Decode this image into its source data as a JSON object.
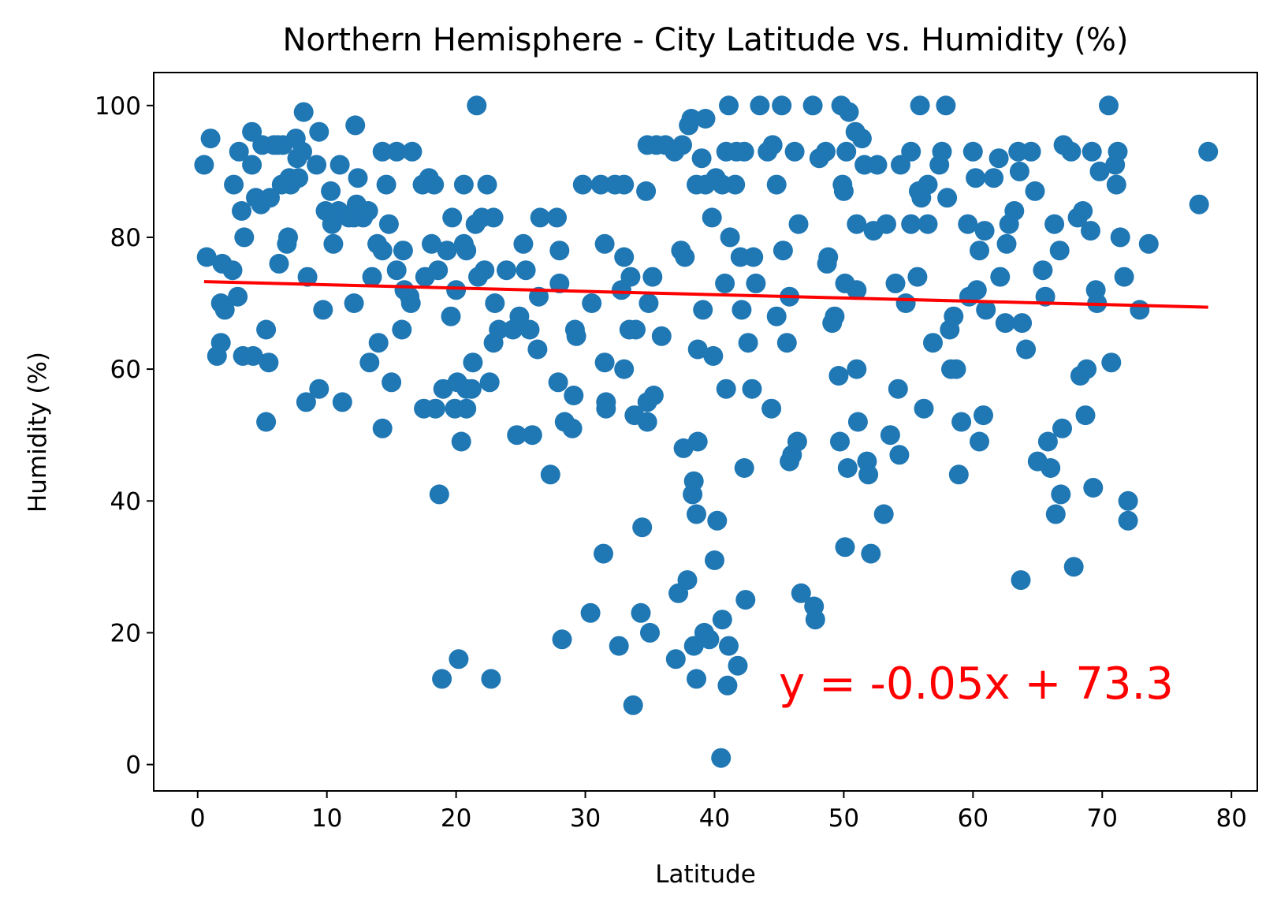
{
  "chart_data": {
    "type": "scatter",
    "title": "Northern Hemisphere - City Latitude vs. Humidity (%)",
    "xlabel": "Latitude",
    "ylabel": "Humidity (%)",
    "xlim": [
      -3.4,
      82
    ],
    "ylim": [
      -4,
      105
    ],
    "xticks": [
      0,
      10,
      20,
      30,
      40,
      50,
      60,
      70,
      80
    ],
    "yticks": [
      0,
      20,
      40,
      60,
      80,
      100
    ],
    "grid": false,
    "legend": "none",
    "colors": {
      "points": "#1f77b4",
      "regression": "#ff0000"
    },
    "regression": {
      "slope": -0.05,
      "intercept": 73.3,
      "x_start": 0.5,
      "x_end": 78.2
    },
    "annotation": "y = -0.05x + 73.3",
    "points": [
      [
        0.5,
        91
      ],
      [
        0.7,
        77
      ],
      [
        1,
        95
      ],
      [
        1.5,
        62
      ],
      [
        1.8,
        64
      ],
      [
        1.9,
        76
      ],
      [
        1.8,
        70
      ],
      [
        2.1,
        69
      ],
      [
        2.7,
        75
      ],
      [
        2.8,
        88
      ],
      [
        3.1,
        71
      ],
      [
        3.2,
        93
      ],
      [
        3.4,
        84
      ],
      [
        3.5,
        62
      ],
      [
        3.6,
        80
      ],
      [
        4.2,
        91
      ],
      [
        4.3,
        62
      ],
      [
        4.2,
        96
      ],
      [
        4.5,
        86
      ],
      [
        4.9,
        85
      ],
      [
        5,
        94
      ],
      [
        5.3,
        66
      ],
      [
        5.3,
        52
      ],
      [
        5.5,
        61
      ],
      [
        5.6,
        86
      ],
      [
        5.9,
        94
      ],
      [
        6.2,
        94
      ],
      [
        6.3,
        76
      ],
      [
        6.5,
        88
      ],
      [
        6.6,
        94
      ],
      [
        6.9,
        79
      ],
      [
        7,
        80
      ],
      [
        7.1,
        89
      ],
      [
        7.2,
        88
      ],
      [
        7.6,
        95
      ],
      [
        7.7,
        92
      ],
      [
        7.8,
        89
      ],
      [
        8.1,
        93
      ],
      [
        8.2,
        99
      ],
      [
        8.4,
        55
      ],
      [
        8.5,
        74
      ],
      [
        9.2,
        91
      ],
      [
        9.4,
        57
      ],
      [
        9.4,
        96
      ],
      [
        9.7,
        69
      ],
      [
        9.9,
        84
      ],
      [
        10.3,
        87
      ],
      [
        10.4,
        82
      ],
      [
        10.5,
        79
      ],
      [
        10.9,
        84
      ],
      [
        11,
        91
      ],
      [
        11.2,
        55
      ],
      [
        11.7,
        83
      ],
      [
        12.1,
        83
      ],
      [
        12.1,
        70
      ],
      [
        12.2,
        97
      ],
      [
        12.3,
        85
      ],
      [
        12.4,
        89
      ],
      [
        12.8,
        83
      ],
      [
        13.2,
        84
      ],
      [
        13.3,
        61
      ],
      [
        13.5,
        74
      ],
      [
        13.9,
        79
      ],
      [
        14,
        64
      ],
      [
        14.3,
        78
      ],
      [
        14.3,
        93
      ],
      [
        14.3,
        51
      ],
      [
        14.6,
        88
      ],
      [
        14.8,
        82
      ],
      [
        15,
        58
      ],
      [
        15.4,
        93
      ],
      [
        15.4,
        75
      ],
      [
        15.8,
        66
      ],
      [
        15.9,
        78
      ],
      [
        16,
        72
      ],
      [
        16.4,
        71
      ],
      [
        16.5,
        70
      ],
      [
        16.6,
        93
      ],
      [
        17.4,
        88
      ],
      [
        17.5,
        54
      ],
      [
        17.6,
        74
      ],
      [
        17.9,
        89
      ],
      [
        18.1,
        79
      ],
      [
        18.3,
        88
      ],
      [
        18.4,
        54
      ],
      [
        18.6,
        75
      ],
      [
        18.7,
        41
      ],
      [
        18.9,
        13
      ],
      [
        19,
        57
      ],
      [
        19.3,
        78
      ],
      [
        19.6,
        68
      ],
      [
        19.7,
        83
      ],
      [
        19.9,
        54
      ],
      [
        20,
        72
      ],
      [
        20.1,
        58
      ],
      [
        20.2,
        16
      ],
      [
        20.4,
        49
      ],
      [
        20.6,
        88
      ],
      [
        20.6,
        79
      ],
      [
        20.8,
        57
      ],
      [
        20.8,
        54
      ],
      [
        20.8,
        78
      ],
      [
        21.2,
        57
      ],
      [
        21.3,
        61
      ],
      [
        21.5,
        82
      ],
      [
        21.6,
        100
      ],
      [
        21.7,
        74
      ],
      [
        22,
        83
      ],
      [
        22.2,
        75
      ],
      [
        22.4,
        88
      ],
      [
        22.6,
        58
      ],
      [
        22.7,
        13
      ],
      [
        22.9,
        64
      ],
      [
        22.9,
        83
      ],
      [
        23,
        70
      ],
      [
        23.3,
        66
      ],
      [
        23.9,
        75
      ],
      [
        24.4,
        66
      ],
      [
        24.7,
        50
      ],
      [
        24.9,
        68
      ],
      [
        25.2,
        79
      ],
      [
        25.4,
        75
      ],
      [
        25.7,
        66
      ],
      [
        25.9,
        50
      ],
      [
        26.3,
        63
      ],
      [
        26.4,
        71
      ],
      [
        26.5,
        83
      ],
      [
        27.3,
        44
      ],
      [
        27.8,
        83
      ],
      [
        27.9,
        58
      ],
      [
        28,
        78
      ],
      [
        28,
        73
      ],
      [
        28.2,
        19
      ],
      [
        28.4,
        52
      ],
      [
        29,
        51
      ],
      [
        29.1,
        56
      ],
      [
        29.2,
        66
      ],
      [
        29.3,
        65
      ],
      [
        29.8,
        88
      ],
      [
        30.4,
        23
      ],
      [
        30.5,
        70
      ],
      [
        31.2,
        88
      ],
      [
        31.4,
        32
      ],
      [
        31.5,
        79
      ],
      [
        31.5,
        61
      ],
      [
        31.6,
        55
      ],
      [
        31.6,
        54
      ],
      [
        32.3,
        88
      ],
      [
        32.6,
        18
      ],
      [
        32.8,
        72
      ],
      [
        33,
        88
      ],
      [
        33,
        77
      ],
      [
        33,
        60
      ],
      [
        33.4,
        66
      ],
      [
        33.5,
        74
      ],
      [
        33.7,
        9
      ],
      [
        33.8,
        53
      ],
      [
        33.9,
        66
      ],
      [
        34.3,
        23
      ],
      [
        34.4,
        36
      ],
      [
        34.7,
        87
      ],
      [
        34.8,
        94
      ],
      [
        34.8,
        52
      ],
      [
        34.8,
        55
      ],
      [
        34.9,
        70
      ],
      [
        35,
        20
      ],
      [
        35.2,
        74
      ],
      [
        35.3,
        56
      ],
      [
        35.5,
        94
      ],
      [
        35.9,
        65
      ],
      [
        36.2,
        94
      ],
      [
        36.9,
        93
      ],
      [
        37,
        16
      ],
      [
        37.2,
        26
      ],
      [
        37.4,
        78
      ],
      [
        37.5,
        94
      ],
      [
        37.6,
        48
      ],
      [
        37.7,
        77
      ],
      [
        37.9,
        28
      ],
      [
        38,
        97
      ],
      [
        38.2,
        98
      ],
      [
        38.3,
        41
      ],
      [
        38.4,
        43
      ],
      [
        38.4,
        18
      ],
      [
        38.6,
        88
      ],
      [
        38.6,
        13
      ],
      [
        38.6,
        38
      ],
      [
        38.7,
        63
      ],
      [
        38.7,
        49
      ],
      [
        39,
        92
      ],
      [
        39.1,
        69
      ],
      [
        39.2,
        20
      ],
      [
        39.3,
        98
      ],
      [
        39.3,
        88
      ],
      [
        39.6,
        19
      ],
      [
        39.8,
        83
      ],
      [
        39.9,
        62
      ],
      [
        40,
        31
      ],
      [
        40.1,
        89
      ],
      [
        40.2,
        37
      ],
      [
        40.5,
        1
      ],
      [
        40.6,
        22
      ],
      [
        40.6,
        88
      ],
      [
        40.8,
        73
      ],
      [
        40.9,
        57
      ],
      [
        40.9,
        93
      ],
      [
        41,
        12
      ],
      [
        41.1,
        100
      ],
      [
        41.1,
        18
      ],
      [
        41.2,
        80
      ],
      [
        41.6,
        88
      ],
      [
        41.7,
        93
      ],
      [
        41.8,
        15
      ],
      [
        42,
        77
      ],
      [
        42.1,
        69
      ],
      [
        42.3,
        45
      ],
      [
        42.3,
        93
      ],
      [
        42.4,
        25
      ],
      [
        42.6,
        64
      ],
      [
        42.9,
        57
      ],
      [
        43,
        77
      ],
      [
        43.2,
        73
      ],
      [
        43.5,
        100
      ],
      [
        44.1,
        93
      ],
      [
        44.4,
        54
      ],
      [
        44.5,
        94
      ],
      [
        44.8,
        68
      ],
      [
        44.8,
        88
      ],
      [
        45.2,
        100
      ],
      [
        45.3,
        78
      ],
      [
        45.6,
        64
      ],
      [
        45.8,
        71
      ],
      [
        45.8,
        46
      ],
      [
        46,
        47
      ],
      [
        46.2,
        93
      ],
      [
        46.4,
        49
      ],
      [
        46.5,
        82
      ],
      [
        46.7,
        26
      ],
      [
        47.6,
        100
      ],
      [
        47.7,
        24
      ],
      [
        47.8,
        22
      ],
      [
        48.1,
        92
      ],
      [
        48.6,
        93
      ],
      [
        48.7,
        76
      ],
      [
        48.8,
        77
      ],
      [
        49.1,
        67
      ],
      [
        49.3,
        68
      ],
      [
        49.6,
        59
      ],
      [
        49.7,
        49
      ],
      [
        49.8,
        100
      ],
      [
        49.9,
        88
      ],
      [
        50,
        87
      ],
      [
        50.1,
        73
      ],
      [
        50.1,
        33
      ],
      [
        50.2,
        93
      ],
      [
        50.3,
        45
      ],
      [
        50.4,
        99
      ],
      [
        50.9,
        96
      ],
      [
        51,
        82
      ],
      [
        51,
        72
      ],
      [
        51,
        60
      ],
      [
        51.1,
        52
      ],
      [
        51.4,
        95
      ],
      [
        51.6,
        91
      ],
      [
        51.8,
        46
      ],
      [
        51.9,
        44
      ],
      [
        52.1,
        32
      ],
      [
        52.3,
        81
      ],
      [
        52.6,
        91
      ],
      [
        53.1,
        38
      ],
      [
        53.3,
        82
      ],
      [
        53.6,
        50
      ],
      [
        54,
        73
      ],
      [
        54.2,
        57
      ],
      [
        54.3,
        47
      ],
      [
        54.4,
        91
      ],
      [
        54.8,
        70
      ],
      [
        55.2,
        93
      ],
      [
        55.2,
        82
      ],
      [
        55.7,
        74
      ],
      [
        55.8,
        87
      ],
      [
        55.9,
        100
      ],
      [
        56,
        86
      ],
      [
        56.2,
        54
      ],
      [
        56.5,
        82
      ],
      [
        56.5,
        88
      ],
      [
        56.9,
        64
      ],
      [
        57.4,
        91
      ],
      [
        57.6,
        93
      ],
      [
        57.9,
        100
      ],
      [
        58,
        86
      ],
      [
        58.2,
        66
      ],
      [
        58.3,
        60
      ],
      [
        58.5,
        68
      ],
      [
        58.7,
        60
      ],
      [
        58.9,
        44
      ],
      [
        59.1,
        52
      ],
      [
        59.6,
        82
      ],
      [
        59.7,
        71
      ],
      [
        60,
        93
      ],
      [
        60.2,
        89
      ],
      [
        60.3,
        72
      ],
      [
        60.5,
        78
      ],
      [
        60.5,
        49
      ],
      [
        60.8,
        53
      ],
      [
        60.9,
        81
      ],
      [
        61,
        69
      ],
      [
        61.6,
        89
      ],
      [
        62,
        92
      ],
      [
        62.1,
        74
      ],
      [
        62.5,
        67
      ],
      [
        62.6,
        79
      ],
      [
        62.8,
        82
      ],
      [
        63.2,
        84
      ],
      [
        63.5,
        93
      ],
      [
        63.6,
        90
      ],
      [
        63.7,
        28
      ],
      [
        63.8,
        67
      ],
      [
        64.1,
        63
      ],
      [
        64.5,
        93
      ],
      [
        64.8,
        87
      ],
      [
        65,
        46
      ],
      [
        65.4,
        75
      ],
      [
        65.6,
        71
      ],
      [
        65.8,
        49
      ],
      [
        66,
        45
      ],
      [
        66.3,
        82
      ],
      [
        66.4,
        38
      ],
      [
        66.7,
        78
      ],
      [
        66.8,
        41
      ],
      [
        66.9,
        51
      ],
      [
        67,
        94
      ],
      [
        67.6,
        93
      ],
      [
        67.8,
        30
      ],
      [
        68.1,
        83
      ],
      [
        68.3,
        59
      ],
      [
        68.5,
        84
      ],
      [
        68.7,
        53
      ],
      [
        68.8,
        60
      ],
      [
        69.1,
        81
      ],
      [
        69.2,
        93
      ],
      [
        69.3,
        42
      ],
      [
        69.5,
        72
      ],
      [
        69.6,
        70
      ],
      [
        69.8,
        90
      ],
      [
        70.5,
        100
      ],
      [
        70.7,
        61
      ],
      [
        71,
        91
      ],
      [
        71.1,
        88
      ],
      [
        71.2,
        93
      ],
      [
        71.4,
        80
      ],
      [
        71.7,
        74
      ],
      [
        72,
        40
      ],
      [
        72,
        37
      ],
      [
        72.9,
        69
      ],
      [
        73.6,
        79
      ],
      [
        77.5,
        85
      ],
      [
        78.2,
        93
      ]
    ]
  }
}
